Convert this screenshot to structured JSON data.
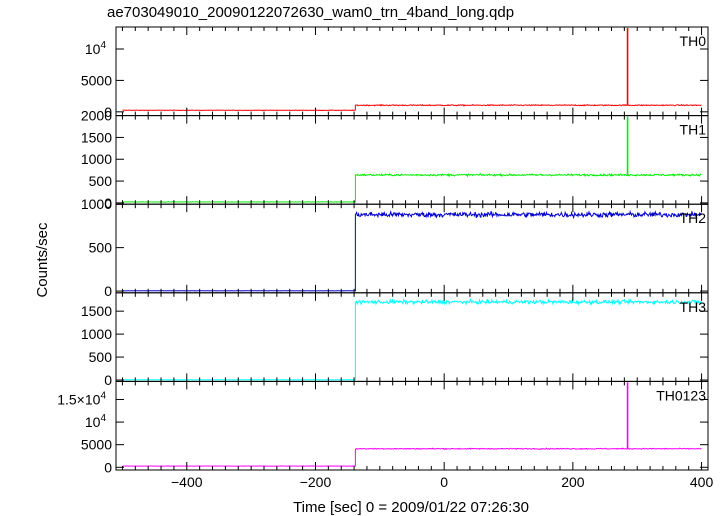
{
  "chart_data": {
    "type": "line",
    "title": "ae703049010_20090122072630_wam0_trn_4band_long.qdp",
    "xlabel": "Time [sec] 0 = 2009/01/22 07:26:30",
    "ylabel": "Counts/sec",
    "xlim": [
      -510,
      410
    ],
    "xticks": [
      {
        "value": -400,
        "label": "−400"
      },
      {
        "value": -200,
        "label": "−200"
      },
      {
        "value": 0,
        "label": "0"
      },
      {
        "value": 200,
        "label": "200"
      },
      {
        "value": 400,
        "label": "400"
      }
    ],
    "panels": [
      {
        "name": "TH0",
        "color": "#ff0000",
        "ylim": [
          -600,
          13500
        ],
        "yticks": [
          {
            "value": 0,
            "label": "0"
          },
          {
            "value": 5000,
            "label": "5000"
          },
          {
            "value": 10000,
            "label": "10",
            "sup": "4"
          }
        ],
        "segments": [
          {
            "x": [
              -500,
              -138
            ],
            "level": 250,
            "noise": 35
          },
          {
            "x": [
              -138,
              400
            ],
            "level": 1050,
            "noise": 80
          }
        ],
        "spikes": [
          {
            "x": 285,
            "y": 13500
          }
        ]
      },
      {
        "name": "TH1",
        "color": "#00ee00",
        "ylim": [
          -30,
          2000
        ],
        "yticks": [
          {
            "value": 0,
            "label": "0"
          },
          {
            "value": 500,
            "label": "500"
          },
          {
            "value": 1000,
            "label": "1000"
          },
          {
            "value": 1500,
            "label": "1500"
          },
          {
            "value": 2000,
            "label": "2000"
          }
        ],
        "segments": [
          {
            "x": [
              -500,
              -138
            ],
            "level": 22,
            "noise": 4
          },
          {
            "x": [
              -138,
              400
            ],
            "level": 640,
            "noise": 20
          }
        ],
        "spikes": [
          {
            "x": 285,
            "y": 1980
          }
        ]
      },
      {
        "name": "TH2",
        "color": "#0000cc",
        "ylim": [
          -20,
          1000
        ],
        "yticks": [
          {
            "value": 0,
            "label": "0"
          },
          {
            "value": 500,
            "label": "500"
          },
          {
            "value": 1000,
            "label": "1000"
          }
        ],
        "segments": [
          {
            "x": [
              -500,
              -138
            ],
            "level": 3,
            "noise": 1
          },
          {
            "x": [
              -138,
              400
            ],
            "level": 880,
            "noise": 30
          }
        ],
        "spikes": []
      },
      {
        "name": "TH3",
        "color": "#00ffff",
        "ylim": [
          -30,
          1900
        ],
        "yticks": [
          {
            "value": 0,
            "label": "0"
          },
          {
            "value": 500,
            "label": "500"
          },
          {
            "value": 1000,
            "label": "1000"
          },
          {
            "value": 1500,
            "label": "1500"
          }
        ],
        "segments": [
          {
            "x": [
              -500,
              -138
            ],
            "level": 5,
            "noise": 2
          },
          {
            "x": [
              -138,
              400
            ],
            "level": 1700,
            "noise": 40
          }
        ],
        "spikes": []
      },
      {
        "name": "TH0123",
        "color": "#ff00ff",
        "ylim": [
          -600,
          19000
        ],
        "yticks": [
          {
            "value": 0,
            "label": "0"
          },
          {
            "value": 5000,
            "label": "5000"
          },
          {
            "value": 10000,
            "label": "10",
            "sup": "4"
          },
          {
            "value": 15000,
            "label": "1.5×10",
            "sup": "4"
          }
        ],
        "segments": [
          {
            "x": [
              -500,
              -138
            ],
            "level": 270,
            "noise": 40
          },
          {
            "x": [
              -138,
              400
            ],
            "level": 4100,
            "noise": 110
          }
        ],
        "spikes": [
          {
            "x": 285,
            "y": 19000
          }
        ]
      }
    ]
  }
}
